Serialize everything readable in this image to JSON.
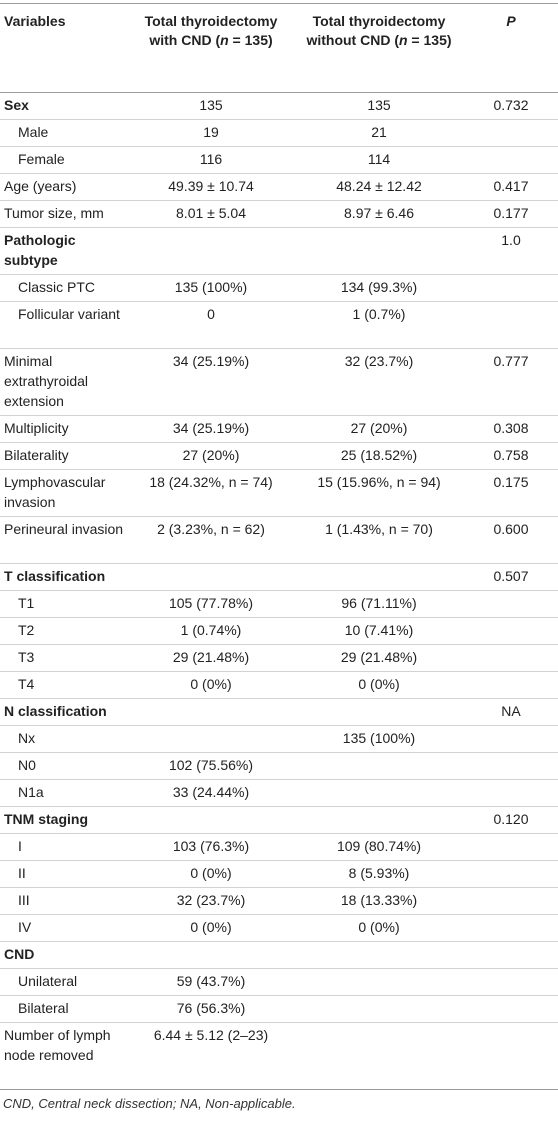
{
  "table": {
    "headers": {
      "variables": "Variables",
      "with_cnd_a": "Total thyroidectomy with CND (",
      "with_cnd_n": "n",
      "with_cnd_b": " = 135)",
      "without_cnd_a": "Total thyroidectomy without CND (",
      "without_cnd_n": "n",
      "without_cnd_b": " = 135)",
      "p": "P"
    },
    "rows": [
      {
        "label": "Sex",
        "bold": true,
        "sub": false,
        "a": "135",
        "b": "135",
        "p": "0.732",
        "h": 1
      },
      {
        "label": "Male",
        "bold": false,
        "sub": true,
        "a": "19",
        "b": "21",
        "p": "",
        "h": 1
      },
      {
        "label": "Female",
        "bold": false,
        "sub": true,
        "a": "116",
        "b": "114",
        "p": "",
        "h": 1
      },
      {
        "label": "Age (years)",
        "bold": false,
        "sub": false,
        "a": "49.39 ± 10.74",
        "b": "48.24 ± 12.42",
        "p": "0.417",
        "h": 1
      },
      {
        "label": "Tumor size, mm",
        "bold": false,
        "sub": false,
        "a": "8.01 ± 5.04",
        "b": "8.97 ± 6.46",
        "p": "0.177",
        "h": 1
      },
      {
        "label": "Pathologic subtype",
        "bold": true,
        "sub": false,
        "a": "",
        "b": "",
        "p": "1.0",
        "h": 2
      },
      {
        "label": "Classic PTC",
        "bold": false,
        "sub": true,
        "a": "135 (100%)",
        "b": "134 (99.3%)",
        "p": "",
        "h": 1
      },
      {
        "label": "Follicular variant",
        "bold": false,
        "sub": true,
        "a": "0",
        "b": "1 (0.7%)",
        "p": "",
        "h": 2
      },
      {
        "label": "Minimal extrathyroidal extension",
        "bold": false,
        "sub": false,
        "a": "34 (25.19%)",
        "b": "32 (23.7%)",
        "p": "0.777",
        "h": 3
      },
      {
        "label": "Multiplicity",
        "bold": false,
        "sub": false,
        "a": "34 (25.19%)",
        "b": "27 (20%)",
        "p": "0.308",
        "h": 1
      },
      {
        "label": "Bilaterality",
        "bold": false,
        "sub": false,
        "a": "27 (20%)",
        "b": "25 (18.52%)",
        "p": "0.758",
        "h": 1
      },
      {
        "label": "Lymphovascular invasion",
        "bold": false,
        "sub": false,
        "a": "18 (24.32%, n = 74)",
        "b": "15 (15.96%, n = 94)",
        "p": "0.175",
        "h": 2
      },
      {
        "label": "Perineural invasion",
        "bold": false,
        "sub": false,
        "a": "2 (3.23%, n = 62)",
        "b": "1 (1.43%, n = 70)",
        "p": "0.600",
        "h": 2
      },
      {
        "label": "T classification",
        "bold": true,
        "sub": false,
        "a": "",
        "b": "",
        "p": "0.507",
        "h": 1
      },
      {
        "label": "T1",
        "bold": false,
        "sub": true,
        "a": "105 (77.78%)",
        "b": "96 (71.11%)",
        "p": "",
        "h": 1
      },
      {
        "label": "T2",
        "bold": false,
        "sub": true,
        "a": "1 (0.74%)",
        "b": "10 (7.41%)",
        "p": "",
        "h": 1
      },
      {
        "label": "T3",
        "bold": false,
        "sub": true,
        "a": "29 (21.48%)",
        "b": "29 (21.48%)",
        "p": "",
        "h": 1
      },
      {
        "label": "T4",
        "bold": false,
        "sub": true,
        "a": "0 (0%)",
        "b": "0 (0%)",
        "p": "",
        "h": 1
      },
      {
        "label": "N classification",
        "bold": true,
        "sub": false,
        "a": "",
        "b": "",
        "p": "NA",
        "h": 1
      },
      {
        "label": "Nx",
        "bold": false,
        "sub": true,
        "a": "",
        "b": "135 (100%)",
        "p": "",
        "h": 1
      },
      {
        "label": "N0",
        "bold": false,
        "sub": true,
        "a": "102 (75.56%)",
        "b": "",
        "p": "",
        "h": 1
      },
      {
        "label": "N1a",
        "bold": false,
        "sub": true,
        "a": "33 (24.44%)",
        "b": "",
        "p": "",
        "h": 1
      },
      {
        "label": "TNM staging",
        "bold": true,
        "sub": false,
        "a": "",
        "b": "",
        "p": "0.120",
        "h": 1
      },
      {
        "label": "I",
        "bold": false,
        "sub": true,
        "a": "103 (76.3%)",
        "b": "109 (80.74%)",
        "p": "",
        "h": 1
      },
      {
        "label": "II",
        "bold": false,
        "sub": true,
        "a": "0 (0%)",
        "b": "8 (5.93%)",
        "p": "",
        "h": 1
      },
      {
        "label": "III",
        "bold": false,
        "sub": true,
        "a": "32 (23.7%)",
        "b": "18 (13.33%)",
        "p": "",
        "h": 1
      },
      {
        "label": "IV",
        "bold": false,
        "sub": true,
        "a": "0 (0%)",
        "b": "0 (0%)",
        "p": "",
        "h": 1
      },
      {
        "label": "CND",
        "bold": true,
        "sub": false,
        "a": "",
        "b": "",
        "p": "",
        "h": 1
      },
      {
        "label": "Unilateral",
        "bold": false,
        "sub": true,
        "a": "59 (43.7%)",
        "b": "",
        "p": "",
        "h": 1
      },
      {
        "label": "Bilateral",
        "bold": false,
        "sub": true,
        "a": "76 (56.3%)",
        "b": "",
        "p": "",
        "h": 1
      },
      {
        "label": "Number of lymph node removed",
        "bold": false,
        "sub": false,
        "a": "6.44 ± 5.12 (2–23)",
        "b": "",
        "p": "",
        "h": 3
      }
    ]
  },
  "footnote": "CND, Central neck dissection; NA, Non-applicable."
}
